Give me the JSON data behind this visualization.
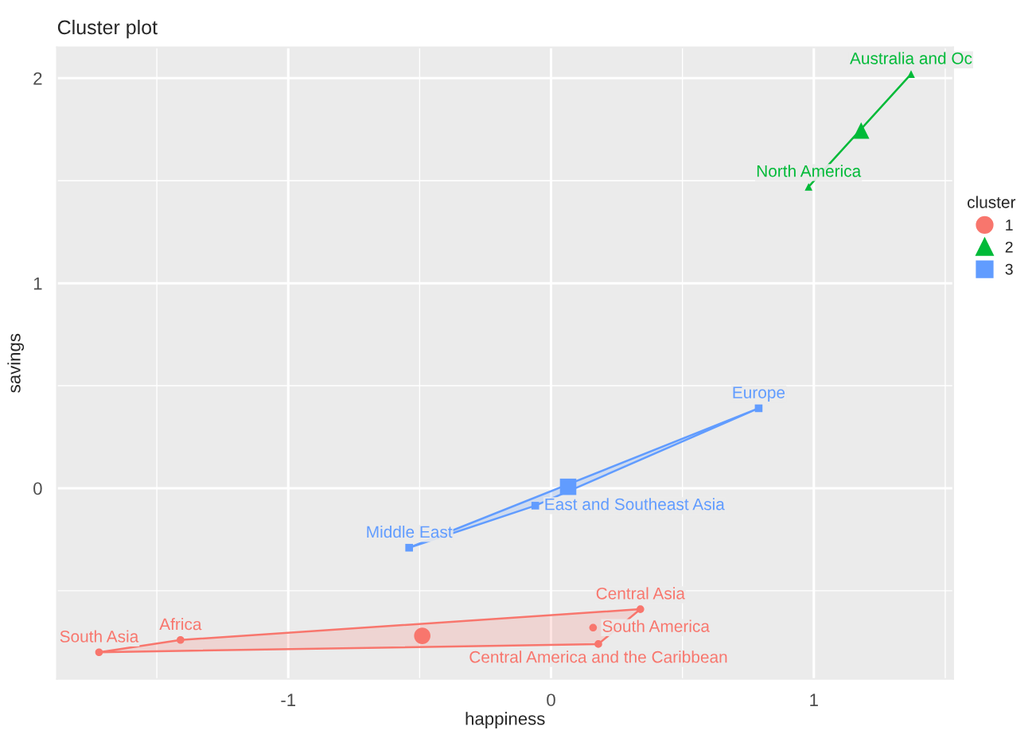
{
  "chart_data": {
    "type": "scatter",
    "title": "Cluster plot",
    "xlabel": "happiness",
    "ylabel": "savings",
    "legend_title": "cluster",
    "legend": "right",
    "grid": true,
    "xlim": [
      -1.88,
      1.53
    ],
    "ylim": [
      -0.93,
      2.15
    ],
    "xticks": [
      -1,
      0,
      1
    ],
    "yticks": [
      0,
      1,
      2
    ],
    "series": [
      {
        "name": "1",
        "color": "#f8766d",
        "marker": "circle",
        "x": [
          -1.72,
          -1.41,
          0.34,
          0.16,
          0.18
        ],
        "values": [
          -0.8,
          -0.74,
          -0.59,
          -0.68,
          -0.76
        ]
      },
      {
        "name": "2",
        "color": "#00ba38",
        "marker": "triangle",
        "x": [
          0.98,
          1.37
        ],
        "values": [
          1.47,
          2.02
        ]
      },
      {
        "name": "3",
        "color": "#619cff",
        "marker": "square",
        "x": [
          -0.54,
          -0.06,
          0.79
        ],
        "values": [
          -0.29,
          -0.085,
          0.39
        ]
      },
      {
        "color": "#f8766d",
        "marker": "circle",
        "x": [
          -0.49
        ],
        "values": [
          -0.72
        ]
      },
      {
        "color": "#00ba38",
        "marker": "triangle",
        "x": [
          1.18
        ],
        "values": [
          1.745
        ]
      },
      {
        "color": "#619cff",
        "marker": "square",
        "x": [
          0.065
        ],
        "values": [
          0.007
        ]
      }
    ],
    "annotations": [
      {
        "text": "South Asia",
        "x": -1.72,
        "y": -0.8
      },
      {
        "text": "Africa",
        "x": -1.41,
        "y": -0.74
      },
      {
        "text": "Central Asia",
        "x": 0.34,
        "y": -0.59
      },
      {
        "text": "South America",
        "x": 0.16,
        "y": -0.68
      },
      {
        "text": "Central America and the Caribbean",
        "x": 0.18,
        "y": -0.76
      },
      {
        "text": "North America",
        "x": 0.98,
        "y": 1.47
      },
      {
        "text": "Australia and Oc",
        "x": 1.37,
        "y": 2.02
      },
      {
        "text": "Middle East",
        "x": -0.54,
        "y": -0.29
      },
      {
        "text": "East and Southeast Asia",
        "x": -0.06,
        "y": -0.085
      },
      {
        "text": "Europe",
        "x": 0.79,
        "y": 0.39
      }
    ]
  }
}
